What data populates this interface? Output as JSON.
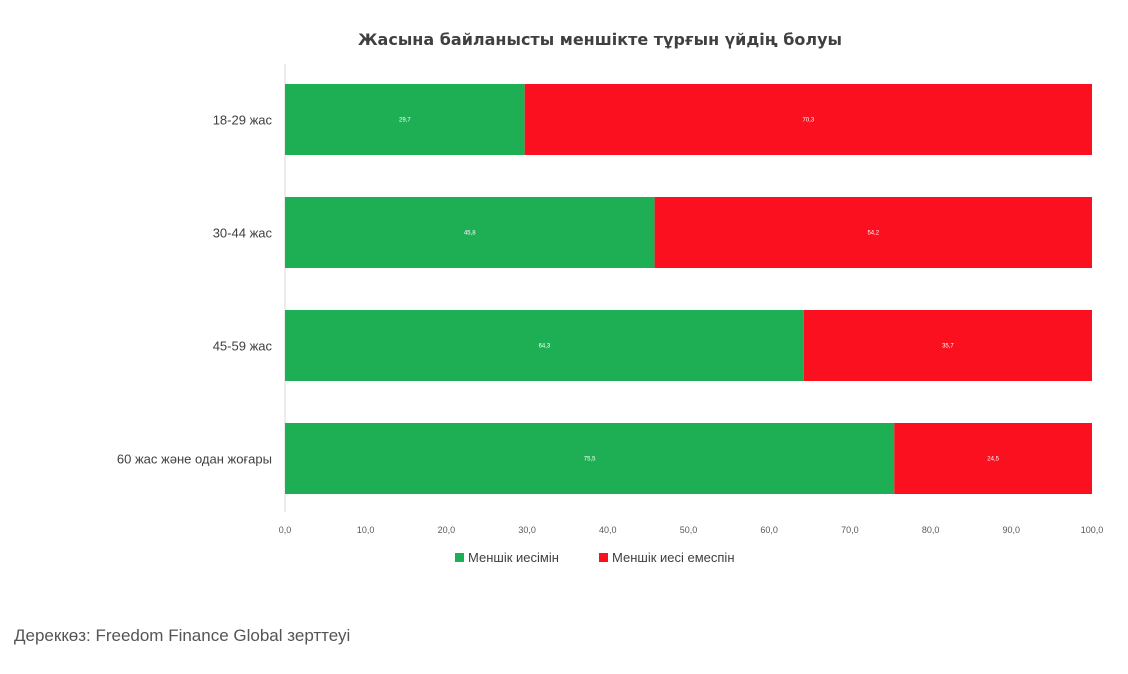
{
  "chart_data": {
    "type": "bar",
    "orientation": "horizontal",
    "stacked": true,
    "title": "Жасына байланысты меншікте тұрғын үйдің болуы",
    "categories": [
      "18-29 жас",
      "30-44 жас",
      "45-59 жас",
      "60 жас және одан жоғары"
    ],
    "series": [
      {
        "name": "Меншік иесімін",
        "color": "#1eaf55",
        "values": [
          29.7,
          45.8,
          64.3,
          75.5
        ],
        "labels": [
          "29,7",
          "45,8",
          "64,3",
          "75,5"
        ]
      },
      {
        "name": "Меншік иесі емеспін",
        "color": "#fa101e",
        "values": [
          70.3,
          54.2,
          35.7,
          24.5
        ],
        "labels": [
          "70,3",
          "54,2",
          "35,7",
          "24,5"
        ]
      }
    ],
    "xlim": [
      0,
      100
    ],
    "xticks": [
      "0,0",
      "10,0",
      "20,0",
      "30,0",
      "40,0",
      "50,0",
      "60,0",
      "70,0",
      "80,0",
      "90,0",
      "100,0"
    ],
    "grid": false,
    "legend": "bottom"
  },
  "source": "Дереккөз: Freedom Finance Global зерттеуі"
}
